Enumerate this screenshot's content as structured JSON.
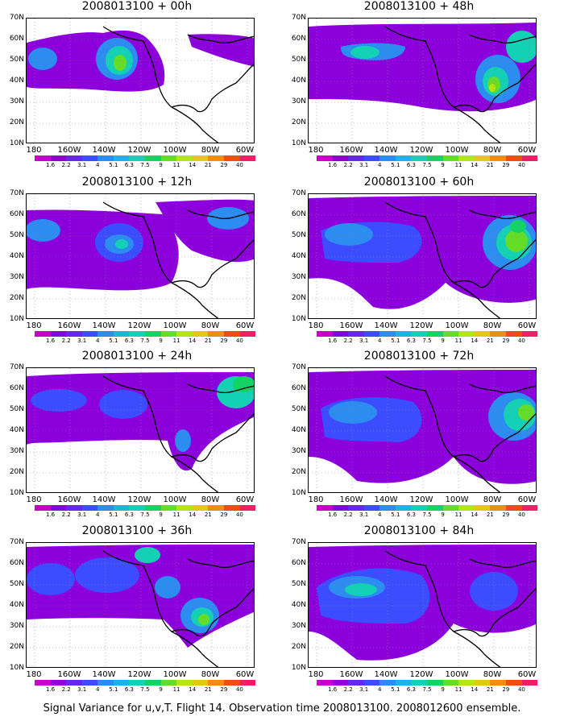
{
  "panels": [
    {
      "title": "2008013100 + 00h",
      "hour": 0
    },
    {
      "title": "2008013100 + 48h",
      "hour": 48
    },
    {
      "title": "2008013100 + 12h",
      "hour": 12
    },
    {
      "title": "2008013100 + 60h",
      "hour": 60
    },
    {
      "title": "2008013100 + 24h",
      "hour": 24
    },
    {
      "title": "2008013100 + 72h",
      "hour": 72
    },
    {
      "title": "2008013100 + 36h",
      "hour": 36
    },
    {
      "title": "2008013100 + 84h",
      "hour": 84
    }
  ],
  "lat_labels": [
    "70N",
    "60N",
    "50N",
    "40N",
    "30N",
    "20N",
    "10N"
  ],
  "lon_labels": [
    "180",
    "160W",
    "140W",
    "120W",
    "100W",
    "80W",
    "60W"
  ],
  "colorbar": {
    "labels": [
      "1.6",
      "2.2",
      "3.1",
      "4",
      "5.1",
      "6.3",
      "7.5",
      "9",
      "11",
      "14",
      "21",
      "29",
      "40"
    ],
    "colors": [
      "#c800c8",
      "#8c00dc",
      "#6428f0",
      "#3c4cff",
      "#2c8cf0",
      "#1cb4e6",
      "#14d0b4",
      "#14d264",
      "#64dc28",
      "#b4e614",
      "#e6c814",
      "#f08c14",
      "#f04c14",
      "#f01e64"
    ]
  },
  "caption": "Signal Variance for u,v,T. Flight 14. Observation time 2008013100. 2008012600 ensemble."
}
